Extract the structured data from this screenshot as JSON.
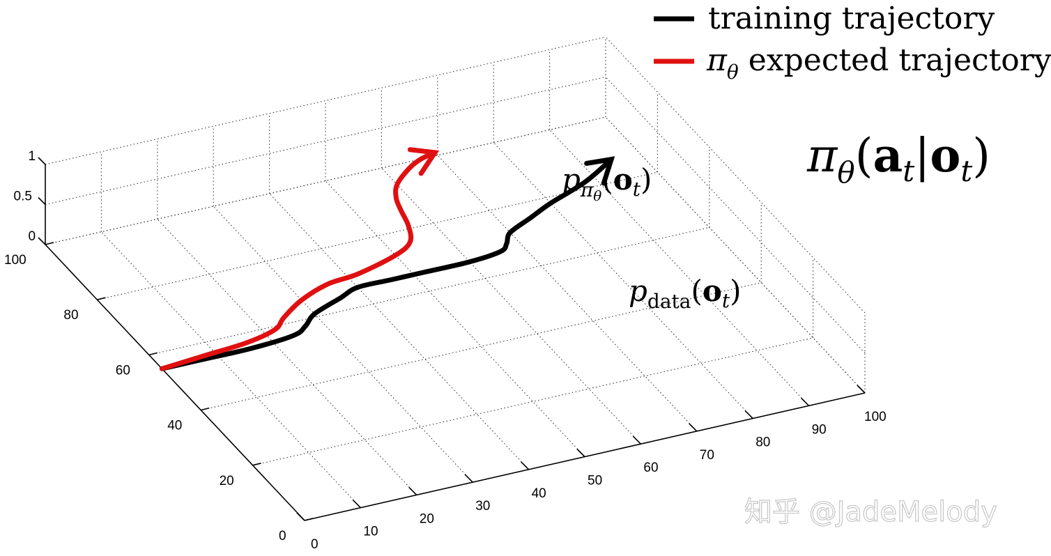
{
  "chart_data": {
    "type": "line",
    "projection": "3d",
    "title": "",
    "xlabel": "",
    "ylabel": "",
    "zlabel": "",
    "xlim": [
      0,
      100
    ],
    "ylim": [
      0,
      100
    ],
    "zlim": [
      0,
      1
    ],
    "x_ticks": [
      "0",
      "10",
      "20",
      "30",
      "40",
      "50",
      "60",
      "70",
      "80",
      "90",
      "100"
    ],
    "y_ticks": [
      "0",
      "20",
      "40",
      "60",
      "80",
      "100"
    ],
    "z_ticks": [
      "0",
      "0.5",
      "1"
    ],
    "grid": true,
    "legend_position": "top-right",
    "series": [
      {
        "name": "training trajectory",
        "color": "#000000",
        "x": [
          0,
          8,
          16,
          24,
          27,
          30,
          36,
          40,
          46,
          52,
          60,
          66,
          68,
          70,
          75,
          80,
          88,
          95
        ],
        "y": [
          55,
          55,
          55,
          56,
          58,
          61,
          64,
          66,
          66,
          66,
          66,
          67,
          69,
          72,
          75,
          78,
          82,
          87
        ],
        "annotation": {
          "base": "p",
          "subscript": "data",
          "argument": "o",
          "argument_subscript": "t"
        }
      },
      {
        "name": "π_θ expected trajectory",
        "color": "#e01010",
        "x": [
          0,
          8,
          16,
          22,
          25,
          30,
          36,
          42,
          50,
          54,
          56,
          57,
          58,
          60,
          64,
          67,
          70
        ],
        "y": [
          55,
          56,
          57,
          59,
          62,
          66,
          69,
          70,
          73,
          76,
          81,
          86,
          90,
          94,
          98,
          100,
          101
        ],
        "annotation": {
          "base": "p",
          "subscript": "π",
          "subscript_sub": "θ",
          "argument": "o",
          "argument_subscript": "t"
        }
      }
    ],
    "legend": [
      {
        "label": "training trajectory",
        "color": "#000000"
      },
      {
        "prefix": "π",
        "prefix_subscript": "θ",
        "label": "expected trajectory",
        "color": "#e01010"
      }
    ],
    "side_formula": {
      "pi": "π",
      "sub": "θ",
      "action": "a",
      "action_sub": "t",
      "bar": "|",
      "obs": "o",
      "obs_sub": "t",
      "open": "(",
      "close": ")"
    }
  },
  "watermark": "知乎 @JadeMelody"
}
